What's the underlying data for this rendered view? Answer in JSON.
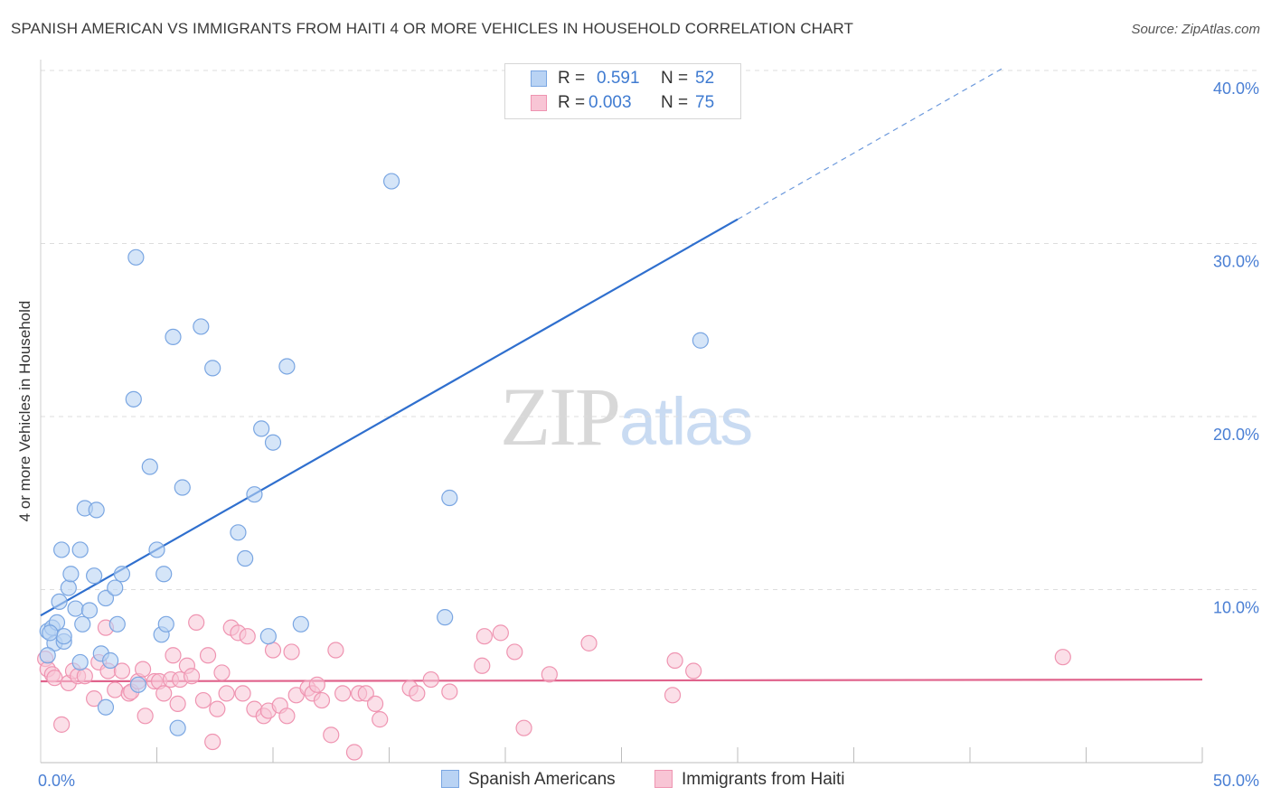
{
  "title": "SPANISH AMERICAN VS IMMIGRANTS FROM HAITI 4 OR MORE VEHICLES IN HOUSEHOLD CORRELATION CHART",
  "source": "Source: ZipAtlas.com",
  "watermark": {
    "part1": "ZIP",
    "part2": "atlas"
  },
  "legend": {
    "rows": [
      {
        "r_label": "R =",
        "r_value": "0.591",
        "n_label": "N =",
        "n_value": "52"
      },
      {
        "r_label": "R =",
        "r_value": "0.003",
        "n_label": "N =",
        "n_value": "75"
      }
    ]
  },
  "bottom_legend": {
    "series1": "Spanish Americans",
    "series2": "Immigrants from Haiti"
  },
  "colors": {
    "blue_fill": "#b9d3f4",
    "blue_stroke": "#7aa6e2",
    "blue_line": "#2f6fce",
    "pink_fill": "#f8c5d5",
    "pink_stroke": "#ef94b1",
    "pink_line": "#e0638c",
    "tick_text": "#4a7fd4",
    "grid": "#dddddd"
  },
  "chart_data": {
    "type": "scatter",
    "title": "SPANISH AMERICAN VS IMMIGRANTS FROM HAITI 4 OR MORE VEHICLES IN HOUSEHOLD CORRELATION CHART",
    "xlabel": "",
    "ylabel": "4 or more Vehicles in Household",
    "xlim": [
      0,
      50
    ],
    "ylim": [
      0,
      40
    ],
    "x_tick_labels": [
      "0.0%",
      "50.0%"
    ],
    "y_ticks": [
      10,
      20,
      30,
      40
    ],
    "y_tick_labels": [
      "10.0%",
      "20.0%",
      "30.0%",
      "40.0%"
    ],
    "legend_position": "top-center",
    "series": [
      {
        "name": "Spanish Americans",
        "R": 0.591,
        "N": 52,
        "trend": {
          "x_start": 0,
          "y_start": 8.5,
          "x_solid_end": 30,
          "y_solid_end": 31.4,
          "x_dash_end": 41.5,
          "y_dash_end": 40.2
        },
        "points": [
          [
            0.3,
            7.6
          ],
          [
            0.5,
            7.8
          ],
          [
            0.6,
            6.9
          ],
          [
            0.7,
            8.1
          ],
          [
            0.8,
            9.3
          ],
          [
            0.9,
            12.3
          ],
          [
            1.0,
            7.0
          ],
          [
            1.0,
            7.3
          ],
          [
            1.2,
            10.1
          ],
          [
            1.3,
            10.9
          ],
          [
            1.5,
            8.9
          ],
          [
            1.7,
            12.3
          ],
          [
            1.7,
            5.8
          ],
          [
            1.8,
            8.0
          ],
          [
            1.9,
            14.7
          ],
          [
            2.1,
            8.8
          ],
          [
            2.3,
            10.8
          ],
          [
            2.4,
            14.6
          ],
          [
            2.6,
            6.3
          ],
          [
            2.8,
            9.5
          ],
          [
            2.8,
            3.2
          ],
          [
            3.0,
            5.9
          ],
          [
            3.2,
            10.1
          ],
          [
            3.3,
            8.0
          ],
          [
            3.5,
            10.9
          ],
          [
            4.0,
            21.0
          ],
          [
            4.1,
            29.2
          ],
          [
            4.2,
            4.5
          ],
          [
            4.7,
            17.1
          ],
          [
            5.0,
            12.3
          ],
          [
            5.2,
            7.4
          ],
          [
            5.3,
            10.9
          ],
          [
            5.4,
            8.0
          ],
          [
            5.7,
            24.6
          ],
          [
            5.9,
            2.0
          ],
          [
            6.1,
            15.9
          ],
          [
            6.9,
            25.2
          ],
          [
            7.4,
            22.8
          ],
          [
            8.5,
            13.3
          ],
          [
            8.8,
            11.8
          ],
          [
            9.2,
            15.5
          ],
          [
            9.5,
            19.3
          ],
          [
            9.8,
            7.3
          ],
          [
            10.0,
            18.5
          ],
          [
            10.6,
            22.9
          ],
          [
            11.2,
            8.0
          ],
          [
            15.1,
            33.6
          ],
          [
            17.4,
            8.4
          ],
          [
            17.6,
            15.3
          ],
          [
            28.4,
            24.4
          ],
          [
            0.3,
            6.2
          ],
          [
            0.4,
            7.5
          ]
        ]
      },
      {
        "name": "Immigrants from Haiti",
        "R": 0.003,
        "N": 75,
        "trend": {
          "x_start": 0,
          "y_start": 4.7,
          "x_end": 50,
          "y_end": 4.8
        },
        "points": [
          [
            0.2,
            6.0
          ],
          [
            0.3,
            5.4
          ],
          [
            0.5,
            5.1
          ],
          [
            0.6,
            4.9
          ],
          [
            0.9,
            2.2
          ],
          [
            1.2,
            4.6
          ],
          [
            1.4,
            5.3
          ],
          [
            1.6,
            5.0
          ],
          [
            1.9,
            5.0
          ],
          [
            2.3,
            3.7
          ],
          [
            2.5,
            5.8
          ],
          [
            2.8,
            7.8
          ],
          [
            2.9,
            5.3
          ],
          [
            3.2,
            4.2
          ],
          [
            3.5,
            5.3
          ],
          [
            3.8,
            4.0
          ],
          [
            3.9,
            4.1
          ],
          [
            4.2,
            4.7
          ],
          [
            4.4,
            5.4
          ],
          [
            4.5,
            2.7
          ],
          [
            4.9,
            4.7
          ],
          [
            5.1,
            4.7
          ],
          [
            5.3,
            4.0
          ],
          [
            5.6,
            4.8
          ],
          [
            5.7,
            6.2
          ],
          [
            5.9,
            3.4
          ],
          [
            6.0,
            4.8
          ],
          [
            6.3,
            5.6
          ],
          [
            6.5,
            5.0
          ],
          [
            6.7,
            8.1
          ],
          [
            7.0,
            3.6
          ],
          [
            7.2,
            6.2
          ],
          [
            7.4,
            1.2
          ],
          [
            7.6,
            3.1
          ],
          [
            7.8,
            5.2
          ],
          [
            8.0,
            4.0
          ],
          [
            8.2,
            7.8
          ],
          [
            8.5,
            7.5
          ],
          [
            8.7,
            4.0
          ],
          [
            8.9,
            7.3
          ],
          [
            9.2,
            3.1
          ],
          [
            9.6,
            2.7
          ],
          [
            9.8,
            3.0
          ],
          [
            10.0,
            6.5
          ],
          [
            10.3,
            3.3
          ],
          [
            10.6,
            2.7
          ],
          [
            10.8,
            6.4
          ],
          [
            11.0,
            3.9
          ],
          [
            11.5,
            4.3
          ],
          [
            11.7,
            4.0
          ],
          [
            11.9,
            4.5
          ],
          [
            12.1,
            3.6
          ],
          [
            12.5,
            1.6
          ],
          [
            12.7,
            6.5
          ],
          [
            13.0,
            4.0
          ],
          [
            13.5,
            0.6
          ],
          [
            13.7,
            4.0
          ],
          [
            14.0,
            4.0
          ],
          [
            14.4,
            3.4
          ],
          [
            14.6,
            2.5
          ],
          [
            15.9,
            4.3
          ],
          [
            16.2,
            4.0
          ],
          [
            16.8,
            4.8
          ],
          [
            17.6,
            4.1
          ],
          [
            19.1,
            7.3
          ],
          [
            19.0,
            5.6
          ],
          [
            19.8,
            7.5
          ],
          [
            20.4,
            6.4
          ],
          [
            20.8,
            2.0
          ],
          [
            21.9,
            5.1
          ],
          [
            23.6,
            6.9
          ],
          [
            27.2,
            3.9
          ],
          [
            27.3,
            5.9
          ],
          [
            28.1,
            5.3
          ],
          [
            44.0,
            6.1
          ]
        ]
      }
    ]
  }
}
